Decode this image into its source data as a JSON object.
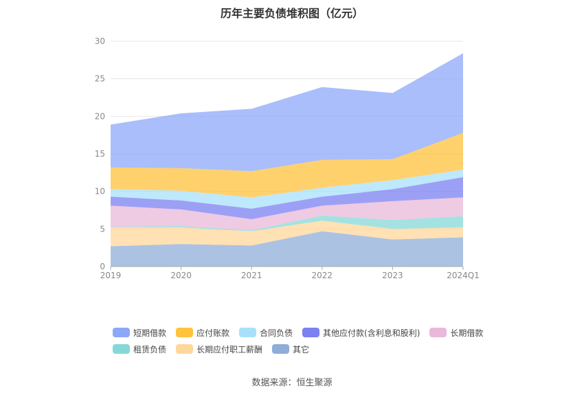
{
  "chart_data": {
    "type": "area",
    "stacked": true,
    "title": "历年主要负债堆积图（亿元）",
    "categories": [
      "2019",
      "2020",
      "2021",
      "2022",
      "2023",
      "2024Q1"
    ],
    "ylim": [
      0,
      30
    ],
    "yticks": [
      0,
      5,
      10,
      15,
      20,
      25,
      30
    ],
    "grid": true,
    "legend_position": "bottom",
    "series": [
      {
        "name": "其它",
        "color": "#8fadd9",
        "values": [
          2.7,
          3.0,
          2.8,
          4.7,
          3.6,
          3.9
        ]
      },
      {
        "name": "长期应付职工薪酬",
        "color": "#ffd79a",
        "values": [
          2.5,
          2.2,
          1.9,
          1.4,
          1.4,
          1.3
        ]
      },
      {
        "name": "租赁负债",
        "color": "#86d8d8",
        "values": [
          0.1,
          0.2,
          0.1,
          0.7,
          1.2,
          1.5
        ]
      },
      {
        "name": "长期借款",
        "color": "#eab8da",
        "values": [
          2.8,
          2.2,
          1.5,
          1.3,
          2.5,
          2.5
        ]
      },
      {
        "name": "其他应付款(含利息和股利)",
        "color": "#7b80f2",
        "values": [
          1.2,
          1.2,
          1.4,
          1.2,
          1.6,
          2.7
        ]
      },
      {
        "name": "合同负债",
        "color": "#a8e0fb",
        "values": [
          1.0,
          1.3,
          1.5,
          1.2,
          1.2,
          1.0
        ]
      },
      {
        "name": "应付账款",
        "color": "#ffc23c",
        "values": [
          2.9,
          3.0,
          3.5,
          3.7,
          2.8,
          4.9
        ]
      },
      {
        "name": "短期借款",
        "color": "#8ca8f8",
        "values": [
          5.7,
          7.3,
          8.3,
          9.7,
          8.8,
          10.6
        ]
      }
    ]
  },
  "legend": {
    "rows": [
      [
        {
          "label": "短期借款",
          "color": "#8ca8f8"
        },
        {
          "label": "应付账款",
          "color": "#ffc23c"
        },
        {
          "label": "合同负债",
          "color": "#a8e0fb"
        },
        {
          "label": "其他应付款(含利息和股利)",
          "color": "#7b80f2"
        },
        {
          "label": "长期借款",
          "color": "#eab8da"
        }
      ],
      [
        {
          "label": "租赁负债",
          "color": "#86d8d8"
        },
        {
          "label": "长期应付职工薪酬",
          "color": "#ffd79a"
        },
        {
          "label": "其它",
          "color": "#8fadd9"
        }
      ]
    ]
  },
  "source_text": "数据来源：恒生聚源"
}
